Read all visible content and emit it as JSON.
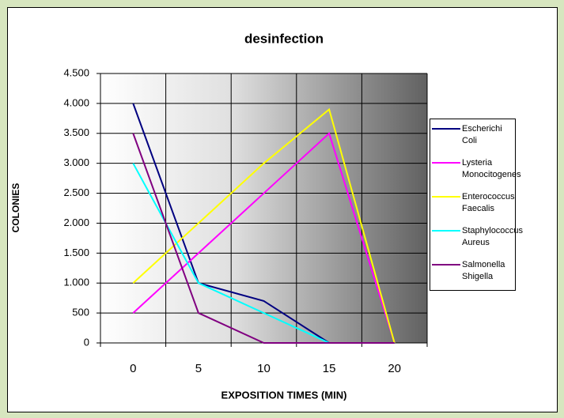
{
  "chart_data": {
    "type": "line",
    "title": "desinfection",
    "x_label": "EXPOSITION TIMES (MIN)",
    "y_label": "COLONIES",
    "categories": [
      "0",
      "5",
      "10",
      "15",
      "20"
    ],
    "series": [
      {
        "name": "Escherichi Coli",
        "color": "#000080",
        "values": [
          4000,
          1000,
          700,
          0,
          0
        ]
      },
      {
        "name": "Lysteria Monocitogenes",
        "color": "#ff00ff",
        "values": [
          500,
          1500,
          2500,
          3500,
          0
        ]
      },
      {
        "name": "Enterococcus Faecalis",
        "color": "#ffff00",
        "values": [
          1000,
          2000,
          3000,
          3900,
          0
        ]
      },
      {
        "name": "Staphylococcus Aureus",
        "color": "#00ffff",
        "values": [
          3000,
          1000,
          500,
          0,
          0
        ]
      },
      {
        "name": "Salmonella Shigella",
        "color": "#800080",
        "values": [
          3500,
          500,
          0,
          0,
          0
        ]
      }
    ],
    "ylim": [
      0,
      4500
    ],
    "yticks": [
      0,
      500,
      {
        "value": 1000,
        "label": "1.000"
      },
      {
        "value": 1500,
        "label": "1.500"
      },
      {
        "value": 2000,
        "label": "2.000"
      },
      {
        "value": 2500,
        "label": "2.500"
      },
      {
        "value": 3000,
        "label": "3.000"
      },
      {
        "value": 3500,
        "label": "3.500"
      },
      {
        "value": 4000,
        "label": "4.000"
      },
      {
        "value": 4500,
        "label": "4.500"
      }
    ],
    "grid": true,
    "legend": "right"
  }
}
